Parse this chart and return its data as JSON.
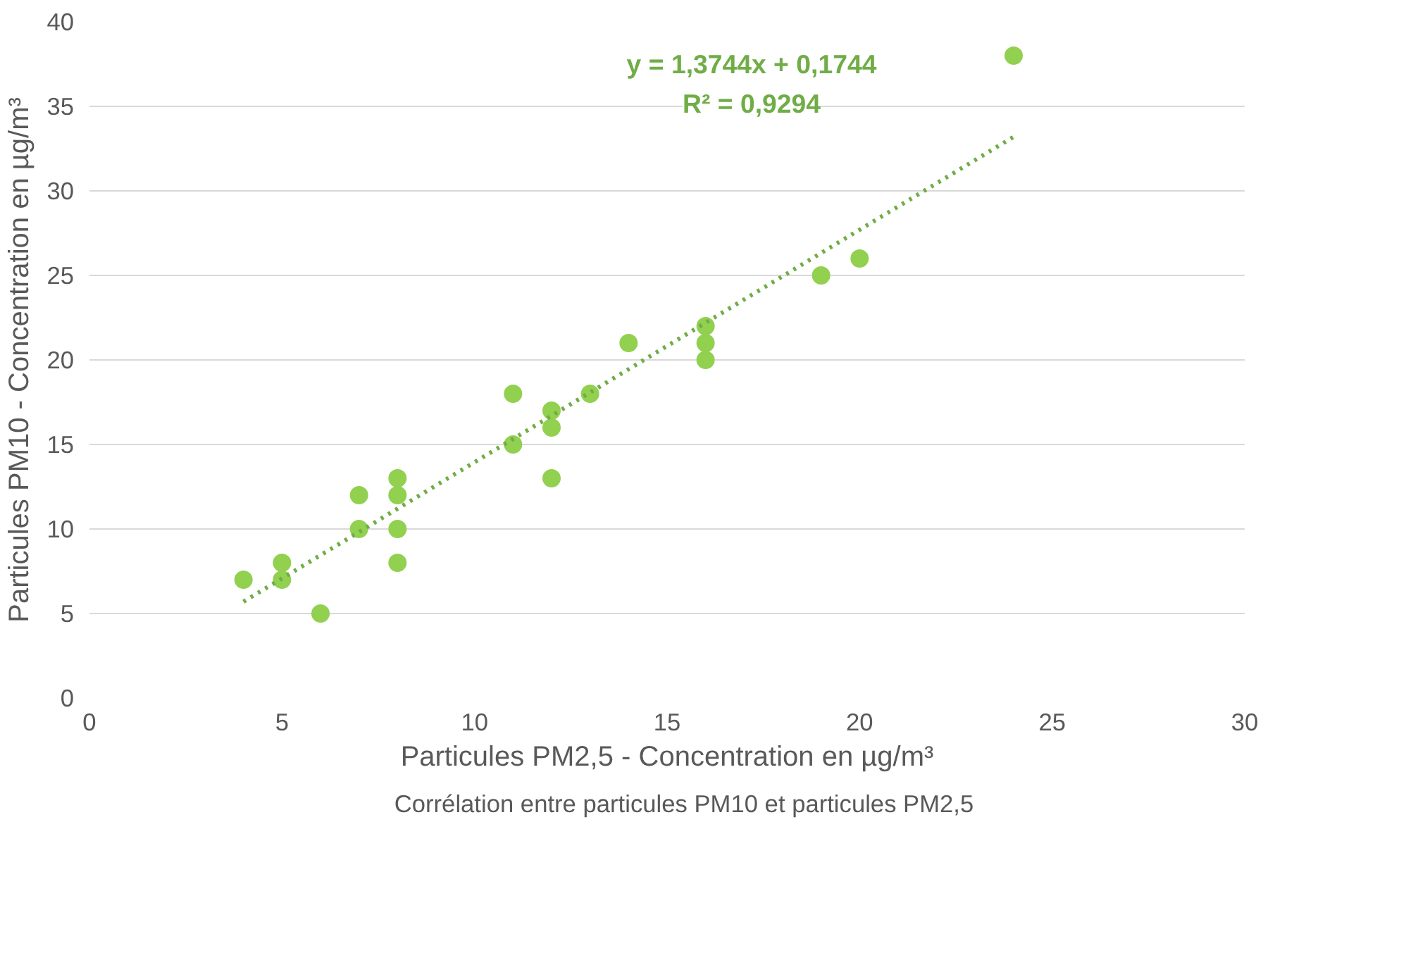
{
  "chart_data": {
    "type": "scatter",
    "xlabel": "Particules PM2,5 - Concentration en µg/m³",
    "ylabel": "Particules PM10 - Concentration en µg/m³",
    "xlim": [
      0,
      30
    ],
    "xticks": [
      0,
      5,
      10,
      15,
      20,
      25,
      30
    ],
    "ylim": [
      0,
      40
    ],
    "yticks": [
      0,
      5,
      10,
      15,
      20,
      25,
      30,
      35,
      40
    ],
    "grid": "y",
    "legend": "bottom",
    "series": [
      {
        "name": "Corrélation entre particules PM10 et particules PM2,5",
        "color": "#92d050",
        "marker": "circle",
        "x": [
          4,
          5,
          5,
          6,
          7,
          7,
          8,
          8,
          8,
          8,
          11,
          11,
          12,
          12,
          12,
          13,
          14,
          16,
          16,
          16,
          19,
          20,
          24
        ],
        "values": [
          7,
          8,
          7,
          5,
          12,
          10,
          13,
          12,
          10,
          8,
          18,
          15,
          17,
          16,
          13,
          18,
          21,
          22,
          21,
          20,
          25,
          26,
          38
        ]
      },
      {
        "type": "line",
        "color": "#70ad47",
        "marker": "none",
        "line_style": "dotted",
        "x": [
          4,
          24
        ],
        "values": [
          5.7,
          33.2
        ]
      }
    ],
    "annotations": [
      "y = 1,3744x + 0,1744",
      "R² = 0,9294"
    ]
  }
}
